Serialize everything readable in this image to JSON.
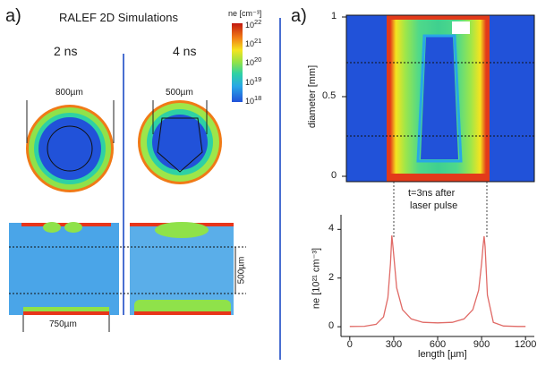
{
  "panel_labels": {
    "left": "a)",
    "right": "a)"
  },
  "title": "RALEF 2D Simulations",
  "time_labels": {
    "t1": "2 ns",
    "t2": "4 ns"
  },
  "dimensions": {
    "ring_2ns": "800µm",
    "ring_4ns": "500µm",
    "rect_height": "500µm",
    "rect_width": "750µm"
  },
  "colorbar": {
    "label": "ne [cm⁻³]",
    "ticks": [
      {
        "base": "10",
        "exp": "22"
      },
      {
        "base": "10",
        "exp": "21"
      },
      {
        "base": "10",
        "exp": "20"
      },
      {
        "base": "10",
        "exp": "19"
      },
      {
        "base": "10",
        "exp": "18"
      }
    ],
    "colors": [
      "#c2180f",
      "#f07a16",
      "#f5e41f",
      "#8fe24a",
      "#2ed1a4",
      "#28a7e6",
      "#2152d9"
    ]
  },
  "map_axis": {
    "ylabel": "diameter [mm]",
    "yticks": [
      "1",
      "0.5",
      "0"
    ]
  },
  "annotation": {
    "line1": "t=3ns after",
    "line2": "laser pulse"
  },
  "chart_data": {
    "type": "line",
    "title": "",
    "xlabel": "length [µm]",
    "ylabel": "ne [10²¹ cm⁻³]",
    "xlim": [
      -60,
      1260
    ],
    "ylim": [
      -0.4,
      4.6
    ],
    "xticks": [
      "0",
      "300",
      "600",
      "900",
      "1200"
    ],
    "yticks": [
      "4",
      "2",
      "0"
    ],
    "grid": false,
    "series_color": "#e06a66",
    "x": [
      0,
      100,
      180,
      230,
      260,
      278,
      287,
      296,
      320,
      360,
      420,
      500,
      600,
      700,
      780,
      840,
      880,
      900,
      910,
      917,
      924,
      940,
      980,
      1050,
      1150,
      1200
    ],
    "y": [
      0.01,
      0.02,
      0.1,
      0.4,
      1.2,
      2.6,
      3.75,
      3.2,
      1.6,
      0.7,
      0.32,
      0.18,
      0.16,
      0.18,
      0.32,
      0.7,
      1.5,
      2.6,
      3.3,
      3.72,
      3.3,
      1.3,
      0.18,
      0.03,
      0.01,
      0.01
    ]
  }
}
